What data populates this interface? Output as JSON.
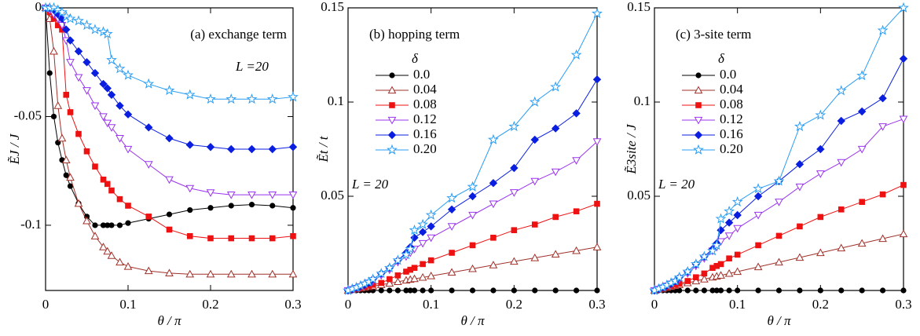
{
  "chart_data": [
    {
      "type": "line",
      "panel_label": "(a) exchange term",
      "annotation": "L =20",
      "xlabel": "θ / π",
      "ylabel": "ẼJ / J",
      "xlim": [
        0,
        0.3
      ],
      "ylim": [
        -0.13,
        0
      ],
      "xticks": [
        0,
        0.1,
        0.2,
        0.3
      ],
      "yticks": [
        0,
        -0.05,
        -0.1
      ],
      "x": [
        0,
        0.005,
        0.01,
        0.015,
        0.02,
        0.025,
        0.03,
        0.04,
        0.05,
        0.06,
        0.07,
        0.075,
        0.08,
        0.09,
        0.1,
        0.125,
        0.15,
        0.175,
        0.2,
        0.225,
        0.25,
        0.275,
        0.3
      ],
      "series": [
        {
          "color": "#000000",
          "marker": "circle",
          "values": [
            0,
            -0.03,
            -0.05,
            -0.062,
            -0.07,
            -0.077,
            -0.082,
            -0.09,
            -0.096,
            -0.1,
            -0.1,
            -0.1,
            -0.1,
            -0.1,
            -0.099,
            -0.097,
            -0.095,
            -0.093,
            -0.092,
            -0.091,
            -0.0905,
            -0.091,
            -0.092
          ]
        },
        {
          "color": "#a0302a",
          "marker": "triangle-up",
          "values": [
            0,
            -0.005,
            -0.02,
            -0.045,
            -0.06,
            -0.07,
            -0.078,
            -0.09,
            -0.098,
            -0.105,
            -0.11,
            -0.112,
            -0.114,
            -0.117,
            -0.119,
            -0.121,
            -0.122,
            -0.1225,
            -0.1225,
            -0.1225,
            -0.1225,
            -0.1225,
            -0.1225
          ]
        },
        {
          "color": "#ee1111",
          "marker": "square",
          "values": [
            0,
            -0.002,
            -0.005,
            -0.008,
            -0.01,
            -0.04,
            -0.048,
            -0.058,
            -0.066,
            -0.073,
            -0.079,
            -0.081,
            -0.084,
            -0.088,
            -0.091,
            -0.096,
            -0.102,
            -0.105,
            -0.106,
            -0.106,
            -0.106,
            -0.106,
            -0.105
          ]
        },
        {
          "color": "#9933ee",
          "marker": "triangle-down",
          "values": [
            0,
            -0.001,
            -0.003,
            -0.005,
            -0.008,
            -0.015,
            -0.025,
            -0.032,
            -0.038,
            -0.045,
            -0.05,
            -0.053,
            -0.055,
            -0.06,
            -0.065,
            -0.072,
            -0.079,
            -0.083,
            -0.085,
            -0.086,
            -0.086,
            -0.086,
            -0.086
          ]
        },
        {
          "color": "#0a1ee0",
          "marker": "diamond",
          "values": [
            0,
            0,
            -0.001,
            -0.003,
            -0.005,
            -0.01,
            -0.015,
            -0.02,
            -0.025,
            -0.03,
            -0.035,
            -0.037,
            -0.04,
            -0.045,
            -0.049,
            -0.055,
            -0.06,
            -0.063,
            -0.064,
            -0.065,
            -0.065,
            -0.065,
            -0.064
          ]
        },
        {
          "color": "#2a9df4",
          "marker": "star",
          "values": [
            0,
            0,
            0,
            -0.001,
            -0.002,
            -0.004,
            -0.005,
            -0.006,
            -0.008,
            -0.01,
            -0.011,
            -0.012,
            -0.024,
            -0.028,
            -0.031,
            -0.035,
            -0.038,
            -0.04,
            -0.042,
            -0.042,
            -0.042,
            -0.042,
            -0.041
          ]
        }
      ]
    },
    {
      "type": "line",
      "panel_label": "(b) hopping term",
      "annotation": "L = 20",
      "xlabel": "θ / π",
      "ylabel": "Ẽt / t",
      "legend": "upper left",
      "legend_title": "δ",
      "xlim": [
        0,
        0.3
      ],
      "ylim": [
        0,
        0.15
      ],
      "xticks": [
        0,
        0.1,
        0.2,
        0.3
      ],
      "yticks": [
        0.05,
        0.1,
        0.15
      ],
      "x": [
        0,
        0.005,
        0.01,
        0.015,
        0.02,
        0.025,
        0.03,
        0.04,
        0.05,
        0.06,
        0.07,
        0.075,
        0.08,
        0.09,
        0.1,
        0.125,
        0.15,
        0.175,
        0.2,
        0.225,
        0.25,
        0.275,
        0.3
      ],
      "series": [
        {
          "name": "0.0",
          "color": "#000000",
          "marker": "circle",
          "values": [
            0,
            0,
            0,
            0,
            0,
            0,
            0,
            0,
            0,
            0,
            0,
            0,
            0,
            0,
            0,
            0,
            0,
            0,
            0,
            0,
            0,
            0,
            0
          ]
        },
        {
          "name": "0.04",
          "color": "#a0302a",
          "marker": "triangle-up",
          "values": [
            0,
            0.0004,
            0.0008,
            0.0012,
            0.0015,
            0.0019,
            0.0023,
            0.003,
            0.0038,
            0.0046,
            0.0054,
            0.0058,
            0.0062,
            0.0069,
            0.0077,
            0.0096,
            0.0115,
            0.0135,
            0.0154,
            0.0173,
            0.0192,
            0.0211,
            0.023
          ]
        },
        {
          "name": "0.08",
          "color": "#ee1111",
          "marker": "square",
          "values": [
            0,
            0.0005,
            0.001,
            0.0015,
            0.002,
            0.0025,
            0.003,
            0.004,
            0.006,
            0.008,
            0.01,
            0.011,
            0.012,
            0.014,
            0.016,
            0.02,
            0.024,
            0.028,
            0.032,
            0.035,
            0.039,
            0.042,
            0.046
          ]
        },
        {
          "name": "0.12",
          "color": "#9933ee",
          "marker": "triangle-down",
          "values": [
            0,
            0.0006,
            0.0012,
            0.002,
            0.003,
            0.004,
            0.005,
            0.008,
            0.011,
            0.015,
            0.018,
            0.02,
            0.022,
            0.025,
            0.028,
            0.034,
            0.04,
            0.046,
            0.052,
            0.058,
            0.063,
            0.069,
            0.079
          ]
        },
        {
          "name": "0.16",
          "color": "#0a1ee0",
          "marker": "diamond",
          "values": [
            0,
            0.0007,
            0.0014,
            0.0022,
            0.003,
            0.004,
            0.006,
            0.009,
            0.012,
            0.016,
            0.02,
            0.023,
            0.028,
            0.031,
            0.034,
            0.043,
            0.05,
            0.057,
            0.065,
            0.08,
            0.086,
            0.094,
            0.112
          ]
        },
        {
          "name": "0.20",
          "color": "#2a9df4",
          "marker": "star",
          "values": [
            0,
            0.0008,
            0.0016,
            0.0025,
            0.0035,
            0.0045,
            0.006,
            0.009,
            0.012,
            0.016,
            0.019,
            0.022,
            0.032,
            0.035,
            0.04,
            0.049,
            0.055,
            0.08,
            0.087,
            0.1,
            0.108,
            0.125,
            0.147
          ]
        }
      ]
    },
    {
      "type": "line",
      "panel_label": "(c) 3-site term",
      "annotation": "L = 20",
      "xlabel": "θ / π",
      "ylabel": "Ẽ3site / J",
      "legend": "upper left",
      "legend_title": "δ",
      "xlim": [
        0,
        0.3
      ],
      "ylim": [
        0,
        0.15
      ],
      "xticks": [
        0,
        0.1,
        0.2,
        0.3
      ],
      "yticks": [
        0.05,
        0.1,
        0.15
      ],
      "x": [
        0,
        0.005,
        0.01,
        0.015,
        0.02,
        0.025,
        0.03,
        0.04,
        0.05,
        0.06,
        0.07,
        0.075,
        0.08,
        0.09,
        0.1,
        0.125,
        0.15,
        0.175,
        0.2,
        0.225,
        0.25,
        0.275,
        0.3
      ],
      "series": [
        {
          "name": "0.0",
          "color": "#000000",
          "marker": "circle",
          "values": [
            0,
            0,
            0,
            0,
            0,
            0,
            0,
            0,
            0,
            0,
            0,
            0,
            0,
            0,
            0,
            0,
            0,
            0,
            0,
            0,
            0,
            0,
            0
          ]
        },
        {
          "name": "0.04",
          "color": "#a0302a",
          "marker": "triangle-up",
          "values": [
            0,
            0.0005,
            0.001,
            0.0015,
            0.002,
            0.0025,
            0.003,
            0.004,
            0.005,
            0.006,
            0.007,
            0.0075,
            0.008,
            0.009,
            0.01,
            0.0125,
            0.015,
            0.0175,
            0.02,
            0.0225,
            0.025,
            0.0275,
            0.03
          ]
        },
        {
          "name": "0.08",
          "color": "#ee1111",
          "marker": "square",
          "values": [
            0,
            0.0006,
            0.0012,
            0.0018,
            0.0025,
            0.003,
            0.0036,
            0.005,
            0.007,
            0.009,
            0.012,
            0.013,
            0.014,
            0.017,
            0.019,
            0.024,
            0.029,
            0.034,
            0.039,
            0.043,
            0.047,
            0.051,
            0.056
          ]
        },
        {
          "name": "0.12",
          "color": "#9933ee",
          "marker": "triangle-down",
          "values": [
            0,
            0.0007,
            0.0014,
            0.0024,
            0.0035,
            0.0045,
            0.006,
            0.009,
            0.013,
            0.017,
            0.021,
            0.023,
            0.026,
            0.029,
            0.033,
            0.04,
            0.047,
            0.055,
            0.062,
            0.068,
            0.075,
            0.087,
            0.091
          ]
        },
        {
          "name": "0.16",
          "color": "#0a1ee0",
          "marker": "diamond",
          "values": [
            0,
            0.0008,
            0.0016,
            0.0026,
            0.0036,
            0.0048,
            0.007,
            0.01,
            0.014,
            0.018,
            0.022,
            0.025,
            0.032,
            0.036,
            0.04,
            0.05,
            0.058,
            0.067,
            0.075,
            0.09,
            0.095,
            0.102,
            0.123
          ]
        },
        {
          "name": "0.20",
          "color": "#2a9df4",
          "marker": "star",
          "values": [
            0,
            0.0009,
            0.0018,
            0.0028,
            0.004,
            0.005,
            0.007,
            0.01,
            0.014,
            0.018,
            0.021,
            0.024,
            0.038,
            0.042,
            0.047,
            0.054,
            0.058,
            0.087,
            0.093,
            0.106,
            0.114,
            0.138,
            0.15
          ]
        }
      ]
    }
  ]
}
